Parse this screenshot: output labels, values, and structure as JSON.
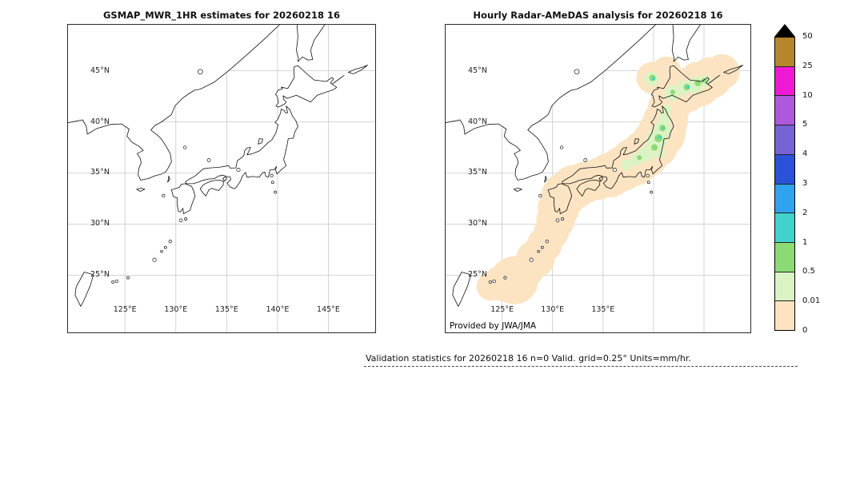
{
  "left_panel": {
    "title": "GSMAP_MWR_1HR estimates for 20260218 16",
    "lat_ticks": [
      "45°N",
      "40°N",
      "35°N",
      "30°N",
      "25°N"
    ],
    "lon_ticks": [
      "125°E",
      "130°E",
      "135°E",
      "140°E",
      "145°E"
    ]
  },
  "right_panel": {
    "title": "Hourly Radar-AMeDAS analysis for 20260218 16",
    "lat_ticks": [
      "45°N",
      "40°N",
      "35°N",
      "30°N",
      "25°N"
    ],
    "lon_ticks": [
      "125°E",
      "130°E",
      "135°E"
    ],
    "credit": "Provided by JWA/JMA"
  },
  "colorbar": {
    "tick_labels": [
      "50",
      "25",
      "10",
      "5",
      "4",
      "3",
      "2",
      "1",
      "0.5",
      "0.01",
      "0"
    ],
    "segment_colors_top_to_bottom": [
      "#b5862b",
      "#f019d5",
      "#ae59dd",
      "#7763d6",
      "#2a52d8",
      "#2fa3ef",
      "#40d3cd",
      "#8cda74",
      "#dbf2c4",
      "#fce4c2"
    ],
    "overflow_triangle_color": "#000000"
  },
  "footer": {
    "validation_text": "Validation statistics for 20260218 16  n=0 Valid. grid=0.25° Units=mm/hr."
  },
  "map_colors": {
    "grid": "#c9c9c9",
    "coast": "#111111",
    "frame": "#2b2b2b",
    "precip_levels_used": [
      "#fce4c2",
      "#dbf2c4",
      "#8cda74",
      "#40d3cd"
    ]
  }
}
